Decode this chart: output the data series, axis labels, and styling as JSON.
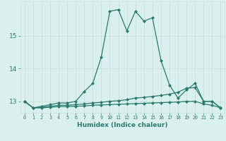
{
  "xlabel": "Humidex (Indice chaleur)",
  "x_values": [
    0,
    1,
    2,
    3,
    4,
    5,
    6,
    7,
    8,
    9,
    10,
    11,
    12,
    13,
    14,
    15,
    16,
    17,
    18,
    19,
    20,
    21,
    22,
    23
  ],
  "line1": [
    13.0,
    12.8,
    12.85,
    12.9,
    12.95,
    12.95,
    13.0,
    13.3,
    13.55,
    14.35,
    15.75,
    15.8,
    15.15,
    15.75,
    15.45,
    15.55,
    14.25,
    13.5,
    13.1,
    13.35,
    13.55,
    13.0,
    13.0,
    12.8
  ],
  "line2": [
    13.0,
    12.8,
    12.82,
    12.85,
    12.88,
    12.88,
    12.9,
    12.92,
    12.95,
    12.97,
    13.0,
    13.02,
    13.05,
    13.1,
    13.12,
    13.15,
    13.18,
    13.22,
    13.28,
    13.4,
    13.42,
    13.0,
    13.0,
    12.8
  ],
  "line3": [
    13.0,
    12.8,
    12.8,
    12.82,
    12.84,
    12.84,
    12.85,
    12.86,
    12.88,
    12.89,
    12.9,
    12.91,
    12.92,
    12.93,
    12.94,
    12.95,
    12.96,
    12.97,
    12.98,
    13.0,
    13.0,
    12.92,
    12.88,
    12.8
  ],
  "line_color": "#2a7a70",
  "bg_color": "#daf0ee",
  "grid_major_color": "#c8e0dc",
  "grid_minor_color": "#e2f2f0",
  "tick_color": "#2a7a70",
  "label_color": "#2a7a70",
  "ylim": [
    12.65,
    16.05
  ],
  "yticks": [
    13,
    14,
    15
  ],
  "xticks": [
    0,
    1,
    2,
    3,
    4,
    5,
    6,
    7,
    8,
    9,
    10,
    11,
    12,
    13,
    14,
    15,
    16,
    17,
    18,
    19,
    20,
    21,
    22,
    23
  ],
  "marker": "D",
  "markersize": 2.0,
  "linewidth": 0.9
}
